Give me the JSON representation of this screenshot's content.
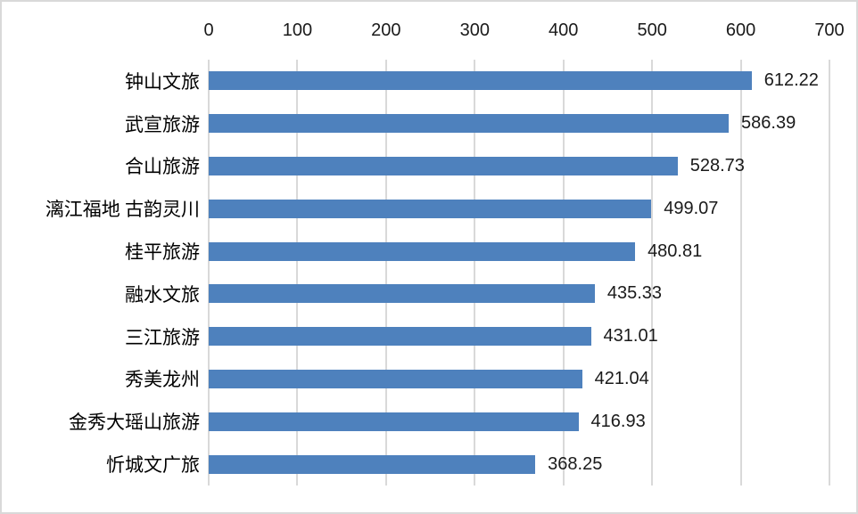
{
  "chart_data": {
    "type": "bar",
    "orientation": "horizontal",
    "title": "",
    "xlabel": "",
    "ylabel": "",
    "categories": [
      "钟山文旅",
      "武宣旅游",
      "合山旅游",
      "漓江福地 古韵灵川",
      "桂平旅游",
      "融水文旅",
      "三江旅游",
      "秀美龙州",
      "金秀大瑶山旅游",
      "忻城文广旅"
    ],
    "values": [
      612.22,
      586.39,
      528.73,
      499.07,
      480.81,
      435.33,
      431.01,
      421.04,
      416.93,
      368.25
    ],
    "value_labels": [
      "612.22",
      "586.39",
      "528.73",
      "499.07",
      "480.81",
      "435.33",
      "431.01",
      "421.04",
      "416.93",
      "368.25"
    ],
    "x_axis": {
      "position": "top",
      "min": 0,
      "max": 700,
      "tick_interval": 100,
      "tick_labels": [
        "0",
        "100",
        "200",
        "300",
        "400",
        "500",
        "600",
        "700"
      ]
    },
    "grid": true,
    "legend": false,
    "colors": {
      "bar": "#4e81bd",
      "gridline": "#d9d9d9",
      "frame_border": "#d9d9d9",
      "text": "#1a1a1a",
      "background": "#ffffff"
    }
  }
}
